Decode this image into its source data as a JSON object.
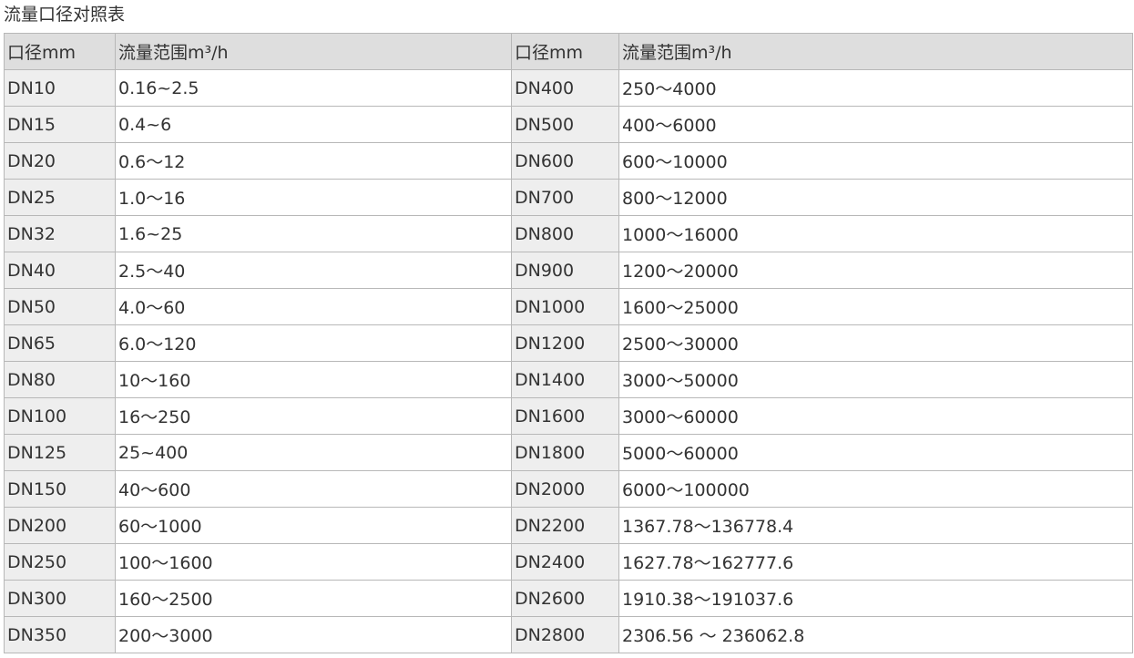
{
  "title": "流量口径对照表",
  "headers": [
    "口径mm",
    "流量范围m³/h",
    "口径mm",
    "流量范围m³/h"
  ],
  "rows": [
    [
      "DN10",
      "0.16~2.5",
      "DN400",
      "250～4000"
    ],
    [
      "DN15",
      "0.4~6",
      "DN500",
      "400～6000"
    ],
    [
      "DN20",
      "0.6～12",
      "DN600",
      "600～10000"
    ],
    [
      "DN25",
      "1.0～16",
      "DN700",
      "800～12000"
    ],
    [
      "DN32",
      "1.6~25",
      "DN800",
      "1000～16000"
    ],
    [
      "DN40",
      "2.5～40",
      "DN900",
      "1200～20000"
    ],
    [
      "DN50",
      "4.0～60",
      "DN1000",
      "1600～25000"
    ],
    [
      "DN65",
      "6.0～120",
      "DN1200",
      "2500～30000"
    ],
    [
      "DN80",
      "10～160",
      "DN1400",
      "3000～50000"
    ],
    [
      "DN100",
      "16～250",
      "DN1600",
      "3000～60000"
    ],
    [
      "DN125",
      "25~400",
      "DN1800",
      "5000～60000"
    ],
    [
      "DN150",
      "40～600",
      "DN2000",
      "6000～100000"
    ],
    [
      "DN200",
      "60～1000",
      "DN2200",
      "1367.78～136778.4"
    ],
    [
      "DN250",
      "100～1600",
      "DN2400",
      "1627.78～162777.6"
    ],
    [
      "DN300",
      "160～2500",
      "DN2600",
      "1910.38～191037.6"
    ],
    [
      "DN350",
      "200～3000",
      "DN2800",
      "2306.56 ～ 236062.8"
    ]
  ]
}
